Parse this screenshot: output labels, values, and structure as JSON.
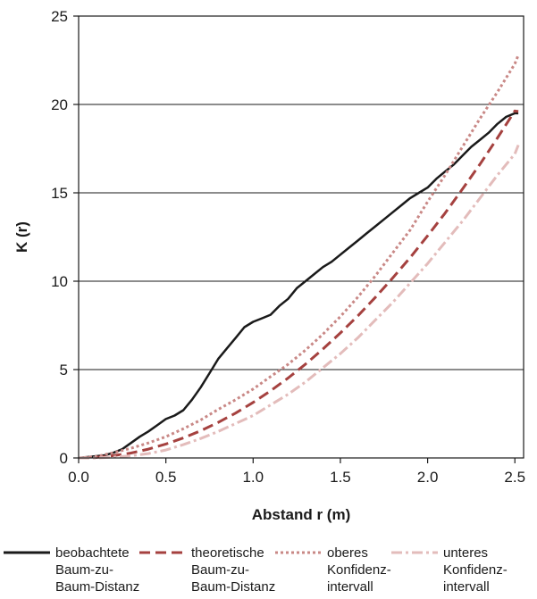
{
  "chart_data": {
    "type": "line",
    "title": "",
    "xlabel": "Abstand r (m)",
    "ylabel": "K (r)",
    "xlim": [
      0,
      2.55
    ],
    "ylim": [
      0,
      25
    ],
    "xticks": [
      "0.0",
      "0.5",
      "1.0",
      "1.5",
      "2.0",
      "2.5"
    ],
    "yticks": [
      "0",
      "5",
      "10",
      "15",
      "20",
      "25"
    ],
    "grid": "horizontal",
    "legend_position": "bottom",
    "series": [
      {
        "name": "beobachtete\nBaum-zu-\nBaum-Distanz",
        "style": "solid",
        "color": "#1a1a1a",
        "x": [
          0,
          0.1,
          0.15,
          0.2,
          0.25,
          0.3,
          0.35,
          0.4,
          0.45,
          0.5,
          0.55,
          0.6,
          0.65,
          0.7,
          0.75,
          0.8,
          0.85,
          0.9,
          0.95,
          1.0,
          1.05,
          1.1,
          1.15,
          1.2,
          1.25,
          1.3,
          1.35,
          1.4,
          1.45,
          1.5,
          1.55,
          1.6,
          1.65,
          1.7,
          1.75,
          1.8,
          1.85,
          1.9,
          1.95,
          2.0,
          2.05,
          2.1,
          2.15,
          2.2,
          2.25,
          2.3,
          2.35,
          2.4,
          2.45,
          2.5,
          2.52
        ],
        "y": [
          0,
          0.1,
          0.15,
          0.3,
          0.5,
          0.85,
          1.2,
          1.5,
          1.85,
          2.2,
          2.4,
          2.7,
          3.3,
          4.0,
          4.8,
          5.6,
          6.2,
          6.8,
          7.4,
          7.7,
          7.9,
          8.1,
          8.6,
          9.0,
          9.6,
          10.0,
          10.4,
          10.8,
          11.1,
          11.5,
          11.9,
          12.3,
          12.7,
          13.1,
          13.5,
          13.9,
          14.3,
          14.7,
          15.0,
          15.3,
          15.8,
          16.2,
          16.6,
          17.1,
          17.6,
          18.0,
          18.4,
          18.9,
          19.3,
          19.5,
          19.5
        ]
      },
      {
        "name": "theoretische\nBaum-zu-\nBaum-Distanz",
        "style": "dashed",
        "color": "#a5413f",
        "x": [
          0,
          0.1,
          0.2,
          0.3,
          0.4,
          0.5,
          0.6,
          0.7,
          0.8,
          0.9,
          1.0,
          1.1,
          1.2,
          1.3,
          1.4,
          1.5,
          1.6,
          1.7,
          1.8,
          1.9,
          2.0,
          2.1,
          2.2,
          2.3,
          2.4,
          2.5,
          2.52
        ],
        "y": [
          0,
          0.03,
          0.13,
          0.28,
          0.5,
          0.79,
          1.13,
          1.54,
          2.01,
          2.54,
          3.14,
          3.8,
          4.52,
          5.31,
          6.16,
          7.07,
          8.04,
          9.08,
          10.18,
          11.34,
          12.57,
          13.85,
          15.21,
          16.62,
          18.1,
          19.63,
          19.6
        ]
      },
      {
        "name": "oberes\nKonfidenz-\nintervall",
        "style": "dotted",
        "color": "#c98886",
        "x": [
          0,
          0.1,
          0.2,
          0.3,
          0.4,
          0.5,
          0.6,
          0.7,
          0.8,
          0.9,
          1.0,
          1.1,
          1.2,
          1.3,
          1.4,
          1.5,
          1.6,
          1.7,
          1.8,
          1.9,
          2.0,
          2.1,
          2.2,
          2.3,
          2.4,
          2.5,
          2.52
        ],
        "y": [
          0,
          0.08,
          0.3,
          0.55,
          0.85,
          1.2,
          1.65,
          2.15,
          2.75,
          3.3,
          3.9,
          4.6,
          5.3,
          6.1,
          7.0,
          8.0,
          9.1,
          10.3,
          11.6,
          12.9,
          14.5,
          16.0,
          17.6,
          19.2,
          20.7,
          22.3,
          22.8
        ]
      },
      {
        "name": "unteres\nKonfidenz-\nintervall",
        "style": "dashdot",
        "color": "#e3bcbb",
        "x": [
          0,
          0.1,
          0.2,
          0.3,
          0.4,
          0.5,
          0.6,
          0.7,
          0.8,
          0.9,
          1.0,
          1.1,
          1.2,
          1.3,
          1.4,
          1.5,
          1.6,
          1.7,
          1.8,
          1.9,
          2.0,
          2.1,
          2.2,
          2.3,
          2.4,
          2.5,
          2.52
        ],
        "y": [
          0,
          0.0,
          0.05,
          0.12,
          0.25,
          0.45,
          0.75,
          1.1,
          1.5,
          1.95,
          2.4,
          3.0,
          3.6,
          4.3,
          5.1,
          5.9,
          6.8,
          7.8,
          8.8,
          9.9,
          11.0,
          12.2,
          13.4,
          14.7,
          16.0,
          17.2,
          17.7
        ]
      }
    ]
  }
}
